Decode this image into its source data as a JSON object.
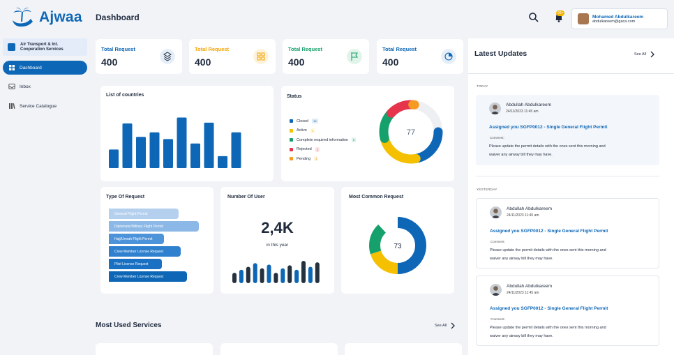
{
  "app": {
    "name": "Ajwaa",
    "page_title": "Dashboard"
  },
  "header": {
    "notification_count": "99+",
    "user": {
      "name": "Mohamed Abdulkareem",
      "email": "abdulkareem@gaca.com"
    }
  },
  "sidebar": {
    "org": {
      "line1": "Air Transport & Int.",
      "line2": "Cooperation Services"
    },
    "items": [
      {
        "label": "Dashboard",
        "icon": "grid-icon",
        "active": true
      },
      {
        "label": "Inbox",
        "icon": "inbox-icon",
        "active": false
      },
      {
        "label": "Service Catalogue",
        "icon": "catalogue-icon",
        "active": false
      }
    ]
  },
  "kpis": [
    {
      "label": "Total Request",
      "value": "400",
      "color": "#0e67b6",
      "icon": "layers-icon"
    },
    {
      "label": "Total Request",
      "value": "400",
      "color": "#f4a300",
      "icon": "apps-icon"
    },
    {
      "label": "Total Request",
      "value": "400",
      "color": "#16a06b",
      "icon": "flag-icon"
    },
    {
      "label": "Total Request",
      "value": "400",
      "color": "#0e67b6",
      "icon": "pie-icon"
    }
  ],
  "countries": {
    "title": "List of countries",
    "chart_data": {
      "type": "bar",
      "values": [
        25,
        60,
        42,
        48,
        39,
        68,
        33,
        61,
        16,
        48
      ],
      "ylim": [
        0,
        75
      ]
    }
  },
  "status": {
    "title": "Status",
    "total": "77",
    "items": [
      {
        "label": "Closed",
        "badge": "12",
        "color": "#0e67b6",
        "value": 22
      },
      {
        "label": "Active",
        "badge": "4",
        "color": "#f5c000",
        "value": 24
      },
      {
        "label": "Complete required information",
        "badge": "8",
        "color": "#16a06b",
        "value": 16
      },
      {
        "label": "Rejected",
        "badge": "2",
        "color": "#e5344b",
        "value": 14
      },
      {
        "label": "Pending",
        "badge": "4",
        "color": "#f59a23",
        "value": 1
      }
    ]
  },
  "type_of_request": {
    "title": "Type Of Request",
    "items": [
      {
        "label": "General Flight Permit",
        "value": 0.7,
        "color": "#b5d0ee"
      },
      {
        "label": "Diplomatic/Military Flight Permit",
        "value": 0.9,
        "color": "#8bb8e6"
      },
      {
        "label": "Hajj/Umrah Flight Permit",
        "value": 0.55,
        "color": "#4d93d9"
      },
      {
        "label": "Crew Member License Request",
        "value": 0.72,
        "color": "#2f80cf"
      },
      {
        "label": "Pilot License Request",
        "value": 0.53,
        "color": "#1a70c2"
      },
      {
        "label": "Crew Member License Request",
        "value": 0.78,
        "color": "#0e67b6"
      }
    ]
  },
  "number_of_user": {
    "title": "Number Of User",
    "value": "2,4K",
    "caption": "in this year",
    "chart_data": {
      "type": "bar",
      "values": [
        14,
        18,
        22,
        27,
        20,
        25,
        14,
        20,
        24,
        18,
        30,
        22,
        28
      ],
      "ylim": [
        0,
        30
      ]
    }
  },
  "most_common": {
    "title": "Most Common Request",
    "total": "73",
    "chart_data": {
      "type": "pie",
      "values": [
        50,
        20,
        18,
        12
      ],
      "colors": [
        "#0e67b6",
        "#f5c000",
        "#16a06b",
        "#ffffff"
      ]
    }
  },
  "updates": {
    "title": "Latest Updates",
    "see_all": "See All",
    "sections": [
      {
        "label": "TODAY",
        "cards": [
          {
            "name": "Abdullah Abdulkareem",
            "time": "24/11/2023 11:45 am",
            "headline": "Assigned you SGFP0012 - Single General Flight Permit",
            "comment_label": "Comment:",
            "comment": "Please update the permit details with the ones sent this morning and waiver any airway bill they may have."
          }
        ]
      },
      {
        "label": "YESTERDAY",
        "cards": [
          {
            "name": "Abdullah Abdulkareem",
            "time": "24/11/2023 11:45 am",
            "headline": "Assigned you SGFP0012 - Single General Flight Permit",
            "comment_label": "Comment:",
            "comment": "Please update the permit details with the ones sent this morning and waiver any airway bill they may have."
          },
          {
            "name": "Abdullah Abdulkareem",
            "time": "24/11/2023 11:45 am",
            "headline": "Assigned you SGFP0012 - Single General Flight Permit",
            "comment_label": "Comment:",
            "comment": "Please update the permit details with the ones sent this morning and waiver any airway bill they may have."
          }
        ]
      }
    ]
  },
  "most_used": {
    "title": "Most Used Services",
    "see_all": "See All"
  }
}
